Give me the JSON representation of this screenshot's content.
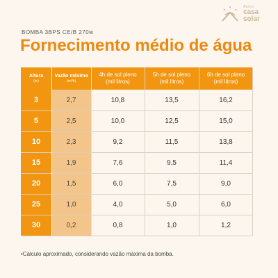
{
  "logo": {
    "line1": "Apoio",
    "line2": "casa",
    "line3": "solar"
  },
  "subtitle": "BOMBA 3BPS CE/B 270w",
  "title": "Fornecimento médio de água",
  "table": {
    "headers": [
      {
        "line1": "Altura",
        "line2": "(m)"
      },
      {
        "line1": "Vazão máxima",
        "line2": "(m³/h)"
      },
      {
        "line1": "4h de sol pleno",
        "line2": "(mil litros)"
      },
      {
        "line1": "5h de sol pleno",
        "line2": "(mil litros)"
      },
      {
        "line1": "6h de sol pleno",
        "line2": "(mil litros)"
      }
    ],
    "rows": [
      [
        "3",
        "2,7",
        "10,8",
        "13,5",
        "16,2"
      ],
      [
        "5",
        "2,5",
        "10,0",
        "12,5",
        "15,0"
      ],
      [
        "10",
        "2,3",
        "9,2",
        "11,5",
        "13,8"
      ],
      [
        "15",
        "1,9",
        "7,6",
        "9,5",
        "11,4"
      ],
      [
        "20",
        "1,5",
        "6,0",
        "7,5",
        "9,0"
      ],
      [
        "25",
        "1,0",
        "4,0",
        "5,0",
        "6,0"
      ],
      [
        "30",
        "0,2",
        "0,8",
        "1,0",
        "1,2"
      ]
    ]
  },
  "footnote": "•Cálculo aproximado, considerando vazão máxima da bomba."
}
